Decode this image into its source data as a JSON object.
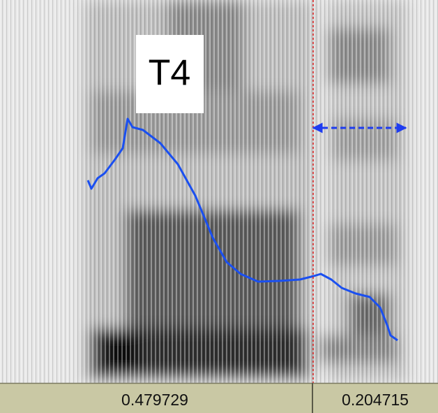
{
  "annotation": {
    "label": "T4"
  },
  "intervals": [
    "0.479729",
    "0.204715"
  ]
}
